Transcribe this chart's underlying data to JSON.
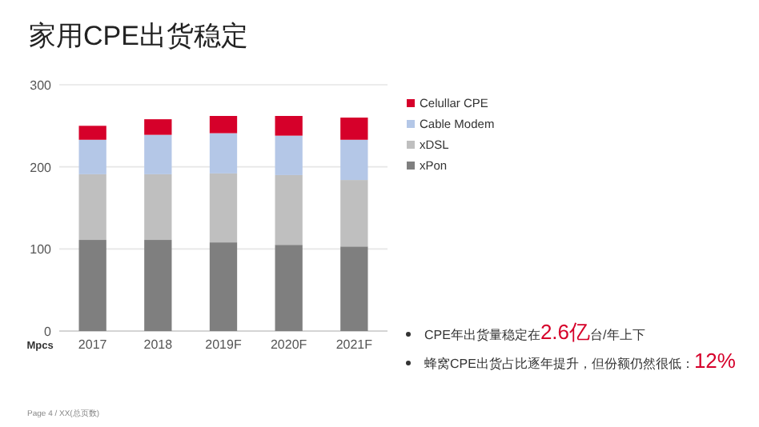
{
  "chart_data": {
    "type": "bar",
    "title": "家用CPE出货稳定",
    "ylabel": "Mpcs",
    "categories": [
      "2017",
      "2018",
      "2019F",
      "2020F",
      "2021F"
    ],
    "series": [
      {
        "name": "xPon",
        "color": "#7f7f7f",
        "values": [
          111,
          111,
          108,
          105,
          103
        ]
      },
      {
        "name": "xDSL",
        "color": "#bfbfbf",
        "values": [
          80,
          80,
          84,
          85,
          81
        ]
      },
      {
        "name": "Cable Modem",
        "color": "#b4c7e7",
        "values": [
          42,
          48,
          49,
          48,
          49
        ]
      },
      {
        "name": "Celullar CPE",
        "color": "#d6002a",
        "values": [
          17,
          19,
          21,
          24,
          27
        ]
      }
    ],
    "stacked": true,
    "ylim": [
      0,
      300
    ],
    "yticks": [
      0,
      100,
      200,
      300
    ],
    "grid": "y",
    "legend": "right",
    "annotations": [
      "CPE年出货量稳定在2.6亿台/年上下",
      "蜂窝CPE出货占比逐年提升，但份额仍然很低：12%",
      "Page 4 / XX(总页数)"
    ]
  }
}
